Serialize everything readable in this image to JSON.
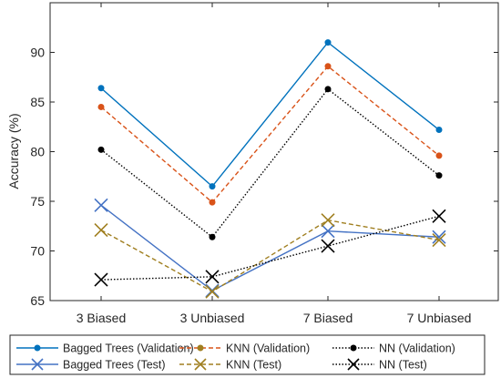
{
  "chart_data": {
    "type": "line",
    "ylabel": "Accuracy (%)",
    "xlabel": "",
    "title": "",
    "categories": [
      "3 Biased",
      "3 Unbiased",
      "7 Biased",
      "7 Unbiased"
    ],
    "ylim": [
      65,
      95
    ],
    "yticks": [
      65,
      70,
      75,
      80,
      85,
      90
    ],
    "grid": false,
    "legend_position": "bottom",
    "series": [
      {
        "name": "Bagged Trees (Validation)",
        "values": [
          86.4,
          76.5,
          91.0,
          82.2
        ],
        "color": "#0072BD",
        "line": "solid",
        "marker": "dot"
      },
      {
        "name": "KNN (Validation)",
        "values": [
          84.5,
          74.9,
          88.6,
          79.6
        ],
        "color": "#D95319",
        "line": "dashed",
        "marker": "dot"
      },
      {
        "name": "NN (Validation)",
        "values": [
          80.2,
          71.4,
          86.3,
          77.6
        ],
        "color": "#000000",
        "line": "dotted",
        "marker": "dot"
      },
      {
        "name": "Bagged Trees (Test)",
        "values": [
          74.6,
          66.0,
          72.0,
          71.4
        ],
        "color": "#4472C4",
        "line": "solid",
        "marker": "x"
      },
      {
        "name": "KNN (Test)",
        "values": [
          72.1,
          65.9,
          73.1,
          71.1
        ],
        "color": "#A07F20",
        "line": "dashed",
        "marker": "x"
      },
      {
        "name": "NN (Test)",
        "values": [
          67.1,
          67.4,
          70.5,
          73.5
        ],
        "color": "#000000",
        "line": "dotted",
        "marker": "x"
      }
    ],
    "legend_rows": [
      [
        "Bagged Trees (Validation)",
        "KNN (Validation)",
        "NN (Validation)"
      ],
      [
        "Bagged Trees (Test)",
        "KNN (Test)",
        "NN (Test)"
      ]
    ],
    "legend_marker_colors": {
      "KNN (Validation)": "#A07F20"
    }
  }
}
